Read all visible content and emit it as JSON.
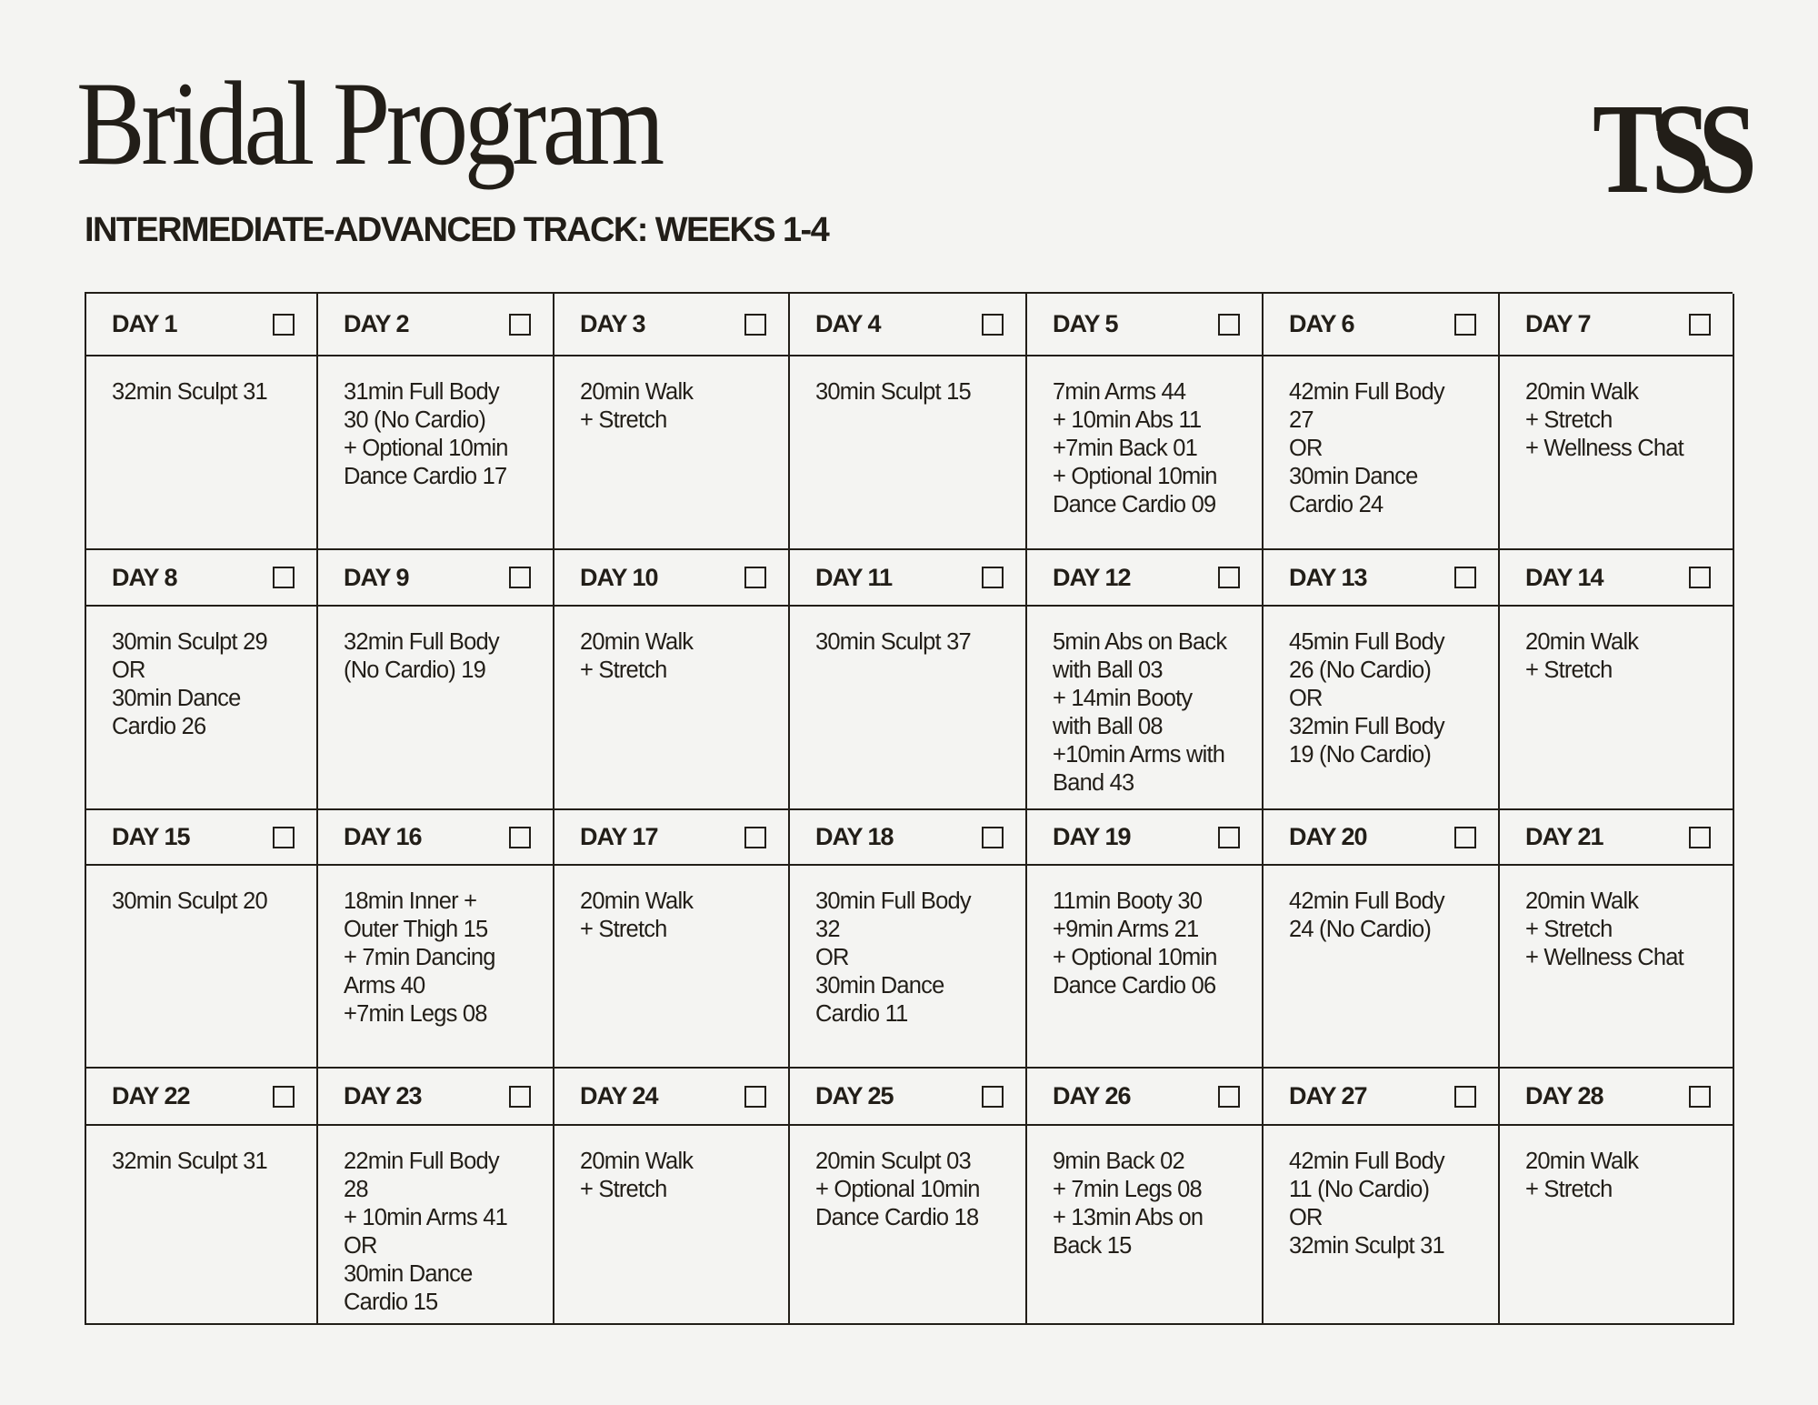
{
  "header": {
    "title": "Bridal Program",
    "subtitle": "INTERMEDIATE-ADVANCED TRACK: WEEKS 1-4",
    "logo": "TSS"
  },
  "days": [
    {
      "label": "DAY 1",
      "workout": "32min Sculpt 31"
    },
    {
      "label": "DAY 2",
      "workout": "31min Full Body\n30 (No Cardio)\n+ Optional 10min\nDance Cardio 17"
    },
    {
      "label": "DAY 3",
      "workout": "20min Walk\n+ Stretch"
    },
    {
      "label": "DAY 4",
      "workout": "30min Sculpt 15"
    },
    {
      "label": "DAY 5",
      "workout": "7min Arms 44\n+ 10min Abs 11\n+7min Back 01\n+ Optional 10min\nDance Cardio 09"
    },
    {
      "label": "DAY 6",
      "workout": "42min Full Body\n27\nOR\n30min Dance\nCardio 24"
    },
    {
      "label": "DAY 7",
      "workout": "20min  Walk\n+ Stretch\n+ Wellness Chat"
    },
    {
      "label": "DAY 8",
      "workout": "30min Sculpt 29\nOR\n30min Dance\nCardio 26"
    },
    {
      "label": "DAY 9",
      "workout": "32min Full Body\n(No Cardio) 19"
    },
    {
      "label": "DAY 10",
      "workout": "20min Walk\n+ Stretch"
    },
    {
      "label": "DAY 11",
      "workout": "30min Sculpt 37"
    },
    {
      "label": "DAY 12",
      "workout": "5min Abs on Back\nwith Ball 03\n+ 14min Booty\nwith Ball 08\n+10min Arms with\nBand 43"
    },
    {
      "label": "DAY 13",
      "workout": "45min Full Body\n26 (No Cardio)\nOR\n32min Full Body\n19 (No Cardio)"
    },
    {
      "label": "DAY 14",
      "workout": "20min Walk\n+ Stretch"
    },
    {
      "label": "DAY 15",
      "workout": "30min Sculpt 20"
    },
    {
      "label": "DAY 16",
      "workout": "18min Inner +\nOuter Thigh 15\n+ 7min Dancing\nArms 40\n+7min Legs 08"
    },
    {
      "label": "DAY 17",
      "workout": "20min Walk\n+ Stretch"
    },
    {
      "label": "DAY 18",
      "workout": "30min Full Body\n32\nOR\n30min Dance\nCardio 11"
    },
    {
      "label": "DAY 19",
      "workout": "11min Booty 30\n+9min Arms 21\n+ Optional 10min\nDance Cardio 06"
    },
    {
      "label": "DAY 20",
      "workout": "42min Full Body\n24 (No Cardio)"
    },
    {
      "label": "DAY 21",
      "workout": "20min Walk\n+ Stretch\n+ Wellness Chat"
    },
    {
      "label": "DAY 22",
      "workout": "32min Sculpt 31"
    },
    {
      "label": "DAY 23",
      "workout": "22min Full Body\n28\n+ 10min Arms  41\nOR\n30min Dance\nCardio 15"
    },
    {
      "label": "DAY 24",
      "workout": "20min Walk\n+ Stretch"
    },
    {
      "label": "DAY 25",
      "workout": "20min Sculpt 03\n+ Optional 10min\nDance Cardio 18"
    },
    {
      "label": "DAY 26",
      "workout": "9min Back 02\n+ 7min Legs 08\n+ 13min Abs on\nBack 15"
    },
    {
      "label": "DAY 27",
      "workout": "42min Full Body\n11 (No Cardio)\nOR\n32min Sculpt 31"
    },
    {
      "label": "DAY 28",
      "workout": "20min Walk\n+ Stretch"
    }
  ],
  "checkbox_checked": false
}
